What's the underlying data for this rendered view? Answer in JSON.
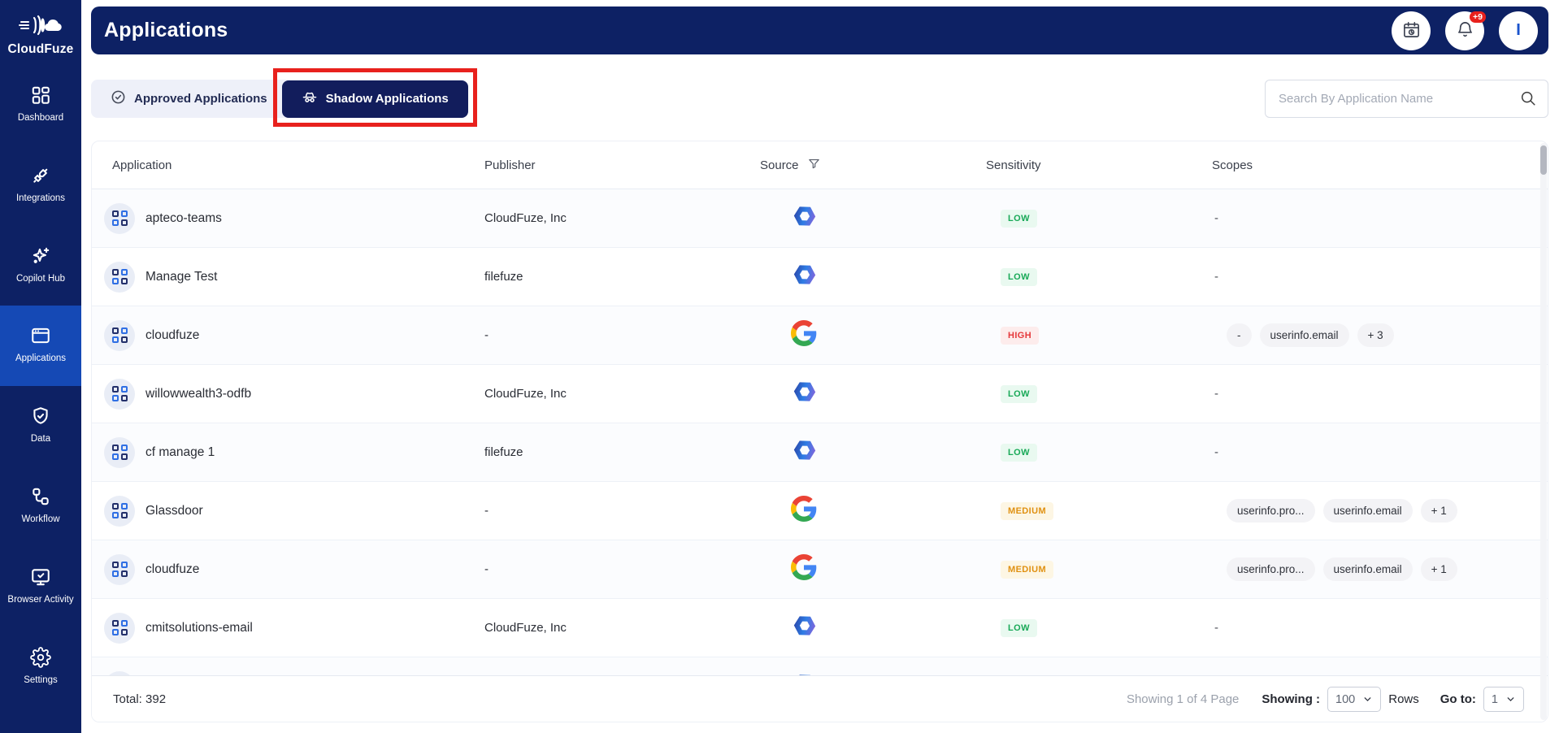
{
  "sidebar": {
    "brand": "CloudFuze",
    "items": [
      {
        "label": "Dashboard",
        "icon": "dashboard-icon",
        "active": false
      },
      {
        "label": "Integrations",
        "icon": "integrations-icon",
        "active": false
      },
      {
        "label": "Copilot Hub",
        "icon": "copilot-hub-icon",
        "active": false
      },
      {
        "label": "Applications",
        "icon": "applications-icon",
        "active": true
      },
      {
        "label": "Data",
        "icon": "data-shield-icon",
        "active": false
      },
      {
        "label": "Workflow",
        "icon": "workflow-icon",
        "active": false
      },
      {
        "label": "Browser Activity",
        "icon": "browser-activity-icon",
        "active": false
      },
      {
        "label": "Settings",
        "icon": "settings-icon",
        "active": false
      }
    ]
  },
  "header": {
    "title": "Applications",
    "notification_count": "+9",
    "avatar_initial": "I"
  },
  "tabs": {
    "approved": "Approved Applications",
    "shadow": "Shadow Applications"
  },
  "search": {
    "placeholder": "Search By Application Name"
  },
  "table": {
    "columns": [
      "Application",
      "Publisher",
      "Source",
      "Sensitivity",
      "Scopes"
    ],
    "rows": [
      {
        "name": "apteco-teams",
        "publisher": "CloudFuze, Inc",
        "source": "microsoft",
        "sensitivity": "LOW",
        "scopes": null
      },
      {
        "name": "Manage Test",
        "publisher": "filefuze",
        "source": "microsoft",
        "sensitivity": "LOW",
        "scopes": null
      },
      {
        "name": "cloudfuze",
        "publisher": "-",
        "source": "google",
        "sensitivity": "HIGH",
        "scopes": [
          "-",
          "userinfo.email",
          "+ 3"
        ]
      },
      {
        "name": "willowwealth3-odfb",
        "publisher": "CloudFuze, Inc",
        "source": "microsoft",
        "sensitivity": "LOW",
        "scopes": null
      },
      {
        "name": "cf manage 1",
        "publisher": "filefuze",
        "source": "microsoft",
        "sensitivity": "LOW",
        "scopes": null
      },
      {
        "name": "Glassdoor",
        "publisher": "-",
        "source": "google",
        "sensitivity": "MEDIUM",
        "scopes": [
          "userinfo.pro...",
          "userinfo.email",
          "+ 1"
        ]
      },
      {
        "name": "cloudfuze",
        "publisher": "-",
        "source": "google",
        "sensitivity": "MEDIUM",
        "scopes": [
          "userinfo.pro...",
          "userinfo.email",
          "+ 1"
        ]
      },
      {
        "name": "cmitsolutions-email",
        "publisher": "CloudFuze, Inc",
        "source": "microsoft",
        "sensitivity": "LOW",
        "scopes": null
      },
      {
        "name": "",
        "publisher": "",
        "source": "microsoft",
        "sensitivity": "",
        "scopes": null,
        "partial": true
      }
    ]
  },
  "footer": {
    "total": "Total: 392",
    "page_info": "Showing 1 of 4 Page",
    "showing_label": "Showing :",
    "rows_value": "100",
    "rows_label": "Rows",
    "goto_label": "Go to:",
    "goto_value": "1"
  },
  "icons": {
    "source_microsoft": "microsoft-365-hexagon-loop",
    "source_google": "google-g",
    "app_avatar": "blue-grid-squares",
    "header_actions": [
      "calendar-clock-icon",
      "bell-icon",
      "avatar"
    ],
    "tab_approved": "check-circle-icon",
    "tab_shadow": "incognito-icon",
    "source_header": "filter-funnel-icon",
    "search": "search-icon"
  },
  "colors": {
    "navy": "#0d2164",
    "active_blue": "#1549b5",
    "annotation_red": "#e8211d",
    "low_green": "#18a957",
    "medium_orange": "#e09112",
    "high_red": "#e5383b"
  }
}
